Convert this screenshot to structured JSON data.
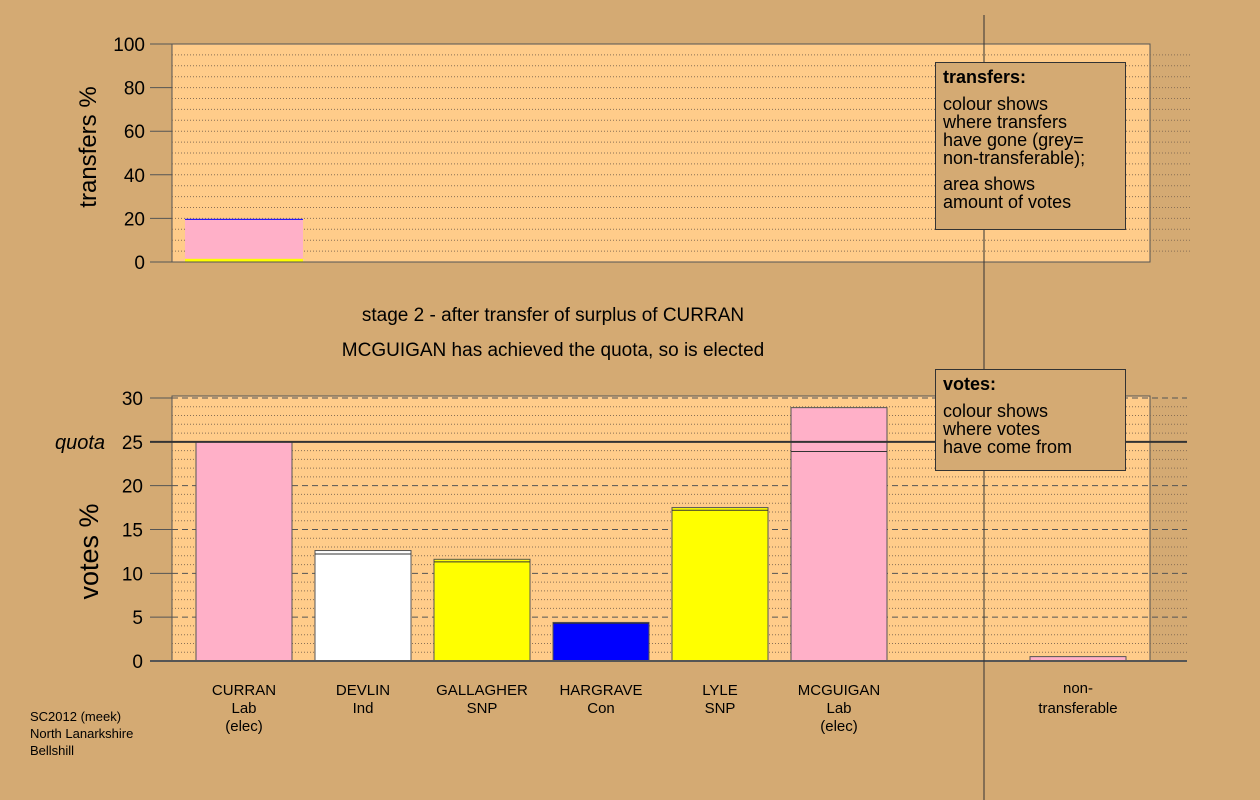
{
  "chart_data": [
    {
      "type": "bar",
      "ylabel": "transfers %",
      "ylim": [
        0,
        100
      ],
      "yticks": [
        0,
        20,
        40,
        60,
        80,
        100
      ],
      "bars": [
        {
          "candidate": "CURRAN",
          "segments": [
            {
              "from": "SNP",
              "value": 1.5,
              "color": "#ffff00"
            },
            {
              "from": "Lab",
              "value": 18.0,
              "color": "#ffb0c8"
            },
            {
              "from": "Con",
              "value": 0.3,
              "color": "#0000ff"
            }
          ]
        }
      ],
      "legend": {
        "title": "transfers:",
        "paragraphs": [
          [
            "colour shows",
            "where transfers",
            "have gone (grey=",
            "non-transferable);"
          ],
          [
            "area shows",
            "amount of votes"
          ]
        ]
      }
    },
    {
      "type": "bar",
      "ylabel": "votes %",
      "ylim": [
        0,
        30
      ],
      "yticks": [
        0,
        5,
        10,
        15,
        20,
        25,
        30
      ],
      "quota": 25,
      "quota_label": "quota",
      "categories": [
        {
          "name": "CURRAN",
          "party": "Lab",
          "status": "(elec)"
        },
        {
          "name": "DEVLIN",
          "party": "Ind",
          "status": ""
        },
        {
          "name": "GALLAGHER",
          "party": "SNP",
          "status": ""
        },
        {
          "name": "HARGRAVE",
          "party": "Con",
          "status": ""
        },
        {
          "name": "LYLE",
          "party": "SNP",
          "status": ""
        },
        {
          "name": "MCGUIGAN",
          "party": "Lab",
          "status": "(elec)"
        }
      ],
      "nontransferable_label": [
        "non-",
        "transferable"
      ],
      "bars": [
        {
          "candidate": "CURRAN",
          "color": "#ffb0c8",
          "base": 25.0,
          "transfer": 0
        },
        {
          "candidate": "DEVLIN",
          "color": "#ffffff",
          "base": 12.2,
          "transfer": 0.4
        },
        {
          "candidate": "GALLAGHER",
          "color": "#ffff00",
          "base": 11.3,
          "transfer": 0.3
        },
        {
          "candidate": "HARGRAVE",
          "color": "#0000ff",
          "base": 4.3,
          "transfer": 0.1
        },
        {
          "candidate": "LYLE",
          "color": "#ffff00",
          "base": 17.2,
          "transfer": 0.3
        },
        {
          "candidate": "MCGUIGAN",
          "color": "#ffb0c8",
          "base": 23.9,
          "transfer": 5.0
        }
      ],
      "nontransferable": {
        "value": 0.5,
        "color": "#ffb0c8"
      },
      "legend": {
        "title": "votes:",
        "paragraphs": [
          [
            "colour shows",
            "where votes",
            "have come from"
          ]
        ]
      }
    }
  ],
  "stage_text": "stage 2 - after transfer of surplus of CURRAN",
  "elected_text": "MCGUIGAN has achieved the quota, so is elected",
  "source": [
    "SC2012 (meek)",
    "North Lanarkshire",
    "Bellshill"
  ]
}
